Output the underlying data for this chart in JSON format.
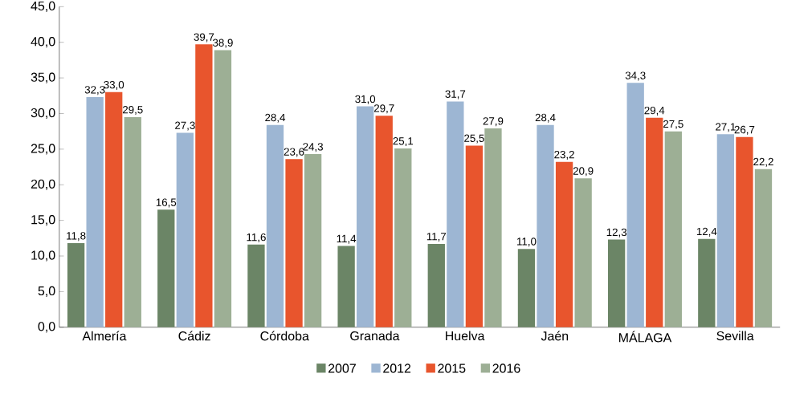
{
  "chart_data": {
    "type": "bar",
    "categories": [
      "Almería",
      "Cádiz",
      "Córdoba",
      "Granada",
      "Huelva",
      "Jaén",
      "MÁLAGA",
      "Sevilla"
    ],
    "series": [
      {
        "name": "2007",
        "color": "#6b8566",
        "values": [
          11.8,
          16.5,
          11.6,
          11.4,
          11.7,
          11.0,
          12.3,
          12.4
        ],
        "value_labels": [
          "11,8",
          "16,5",
          "11,6",
          "11,4",
          "11,7",
          "11,0",
          "12,3",
          "12,4"
        ]
      },
      {
        "name": "2012",
        "color": "#9db6d3",
        "values": [
          32.3,
          27.3,
          28.4,
          31.0,
          31.7,
          28.4,
          34.3,
          27.1
        ],
        "value_labels": [
          "32,3",
          "27,3",
          "28,4",
          "31,0",
          "31,7",
          "28,4",
          "34,3",
          "27,1"
        ]
      },
      {
        "name": "2015",
        "color": "#e8552d",
        "values": [
          33.0,
          39.7,
          23.6,
          29.7,
          25.5,
          23.2,
          29.4,
          26.7
        ],
        "value_labels": [
          "33,0",
          "39,7",
          "23,6",
          "29,7",
          "25,5",
          "23,2",
          "29,4",
          "26,7"
        ]
      },
      {
        "name": "2016",
        "color": "#9daf95",
        "values": [
          29.5,
          38.9,
          24.3,
          25.1,
          27.9,
          20.9,
          27.5,
          22.2
        ],
        "value_labels": [
          "29,5",
          "38,9",
          "24,3",
          "25,1",
          "27,9",
          "20,9",
          "27,5",
          "22,2"
        ]
      }
    ],
    "ylim": [
      0,
      45
    ],
    "yticks": [
      {
        "value": 0,
        "label": "0,0"
      },
      {
        "value": 5,
        "label": "5,0"
      },
      {
        "value": 10,
        "label": "10,0"
      },
      {
        "value": 15,
        "label": "15,0"
      },
      {
        "value": 20,
        "label": "20,0"
      },
      {
        "value": 25,
        "label": "25,0"
      },
      {
        "value": 30,
        "label": "30,0"
      },
      {
        "value": 35,
        "label": "35,0"
      },
      {
        "value": 40,
        "label": "40,0"
      },
      {
        "value": 45,
        "label": "45,0"
      }
    ],
    "legend": "bottom"
  }
}
